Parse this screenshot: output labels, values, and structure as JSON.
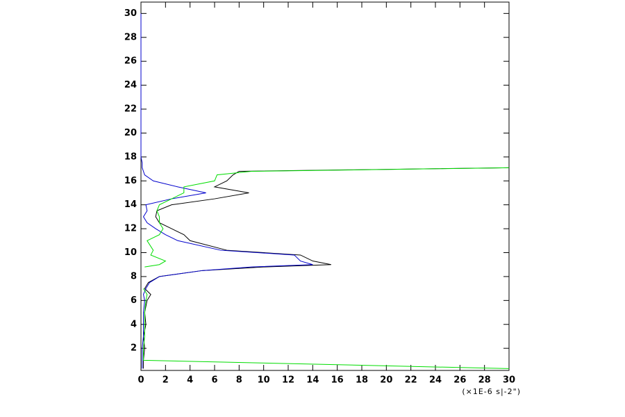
{
  "chart_data": {
    "type": "line",
    "x_label": "(×1E-6 s|-2\")",
    "y": [
      0.3,
      1,
      2,
      3,
      4,
      5,
      6,
      6.5,
      7,
      7.5,
      8,
      8.5,
      8.8,
      9,
      9.3,
      9.8,
      10.2,
      11,
      11.5,
      12,
      12.5,
      13,
      13.5,
      14,
      14.5,
      15,
      15.5,
      16,
      16.5,
      16.8,
      17.1,
      17.5,
      18,
      20,
      25,
      30
    ],
    "series": [
      {
        "color": "#000000",
        "values": [
          0.2,
          0.2,
          0.3,
          0.2,
          0.4,
          0.3,
          0.5,
          0.8,
          0.3,
          0.6,
          1.5,
          5,
          10,
          15.5,
          14,
          13,
          7,
          4,
          3.5,
          2.5,
          1.5,
          1.2,
          1.3,
          2.5,
          6,
          8.8,
          6,
          7,
          7.5,
          8,
          30,
          null,
          null,
          null,
          null,
          null
        ]
      },
      {
        "color": "#0000cc",
        "values": [
          0.1,
          0.1,
          0.1,
          0.2,
          0.2,
          0.2,
          0.3,
          0.2,
          0.4,
          0.7,
          1.5,
          5,
          9,
          14,
          13,
          12.5,
          6.5,
          3,
          2,
          1.2,
          0.5,
          0.2,
          0.5,
          0.4,
          2.5,
          5.3,
          3,
          1,
          0.3,
          0.2,
          0.1,
          0.1,
          0,
          0,
          0,
          0
        ]
      },
      {
        "color": "#00dd00",
        "values": [
          30,
          0.2,
          0.2,
          0.3,
          0.3,
          0.3,
          0.4,
          0.5,
          0.2,
          null,
          null,
          null,
          0.3,
          1.5,
          2,
          0.8,
          1,
          0.5,
          1.5,
          1.8,
          1.5,
          1.5,
          1.3,
          1.5,
          2.5,
          3.5,
          3.5,
          6,
          6.2,
          9,
          30,
          null,
          null,
          null,
          null,
          null
        ]
      }
    ],
    "xlim": [
      0,
      30
    ],
    "xticks": [
      0,
      2,
      4,
      6,
      8,
      10,
      12,
      14,
      16,
      18,
      20,
      22,
      24,
      26,
      28,
      30
    ],
    "ylim": [
      0.15,
      30.95
    ],
    "yticks": [
      2,
      4,
      6,
      8,
      10,
      12,
      14,
      16,
      18,
      20,
      22,
      24,
      26,
      28,
      30
    ]
  }
}
